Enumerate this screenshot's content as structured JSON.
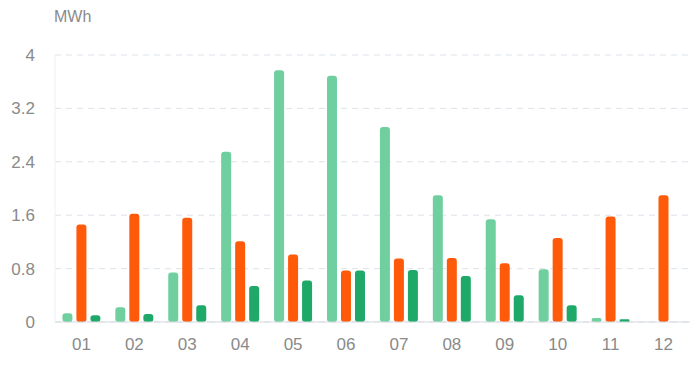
{
  "chart_data": {
    "type": "bar",
    "ylabel": "MWh",
    "categories": [
      "01",
      "02",
      "03",
      "04",
      "05",
      "06",
      "07",
      "08",
      "09",
      "10",
      "11",
      "12"
    ],
    "series": [
      {
        "color": "#6fcf9f",
        "values": [
          0.13,
          0.22,
          0.74,
          2.55,
          3.77,
          3.69,
          2.92,
          1.9,
          1.54,
          0.79,
          0.06,
          0
        ]
      },
      {
        "color": "#ff5a0a",
        "values": [
          1.46,
          1.62,
          1.56,
          1.21,
          1.01,
          0.77,
          0.95,
          0.96,
          0.88,
          1.26,
          1.58,
          1.9
        ]
      },
      {
        "color": "#1fa968",
        "values": [
          0.1,
          0.12,
          0.25,
          0.54,
          0.62,
          0.77,
          0.78,
          0.69,
          0.4,
          0.25,
          0.04,
          0
        ]
      }
    ],
    "ylim": [
      0,
      4
    ],
    "yticks": [
      0,
      0.8,
      1.6,
      2.4,
      3.2,
      4
    ],
    "grid": true
  }
}
